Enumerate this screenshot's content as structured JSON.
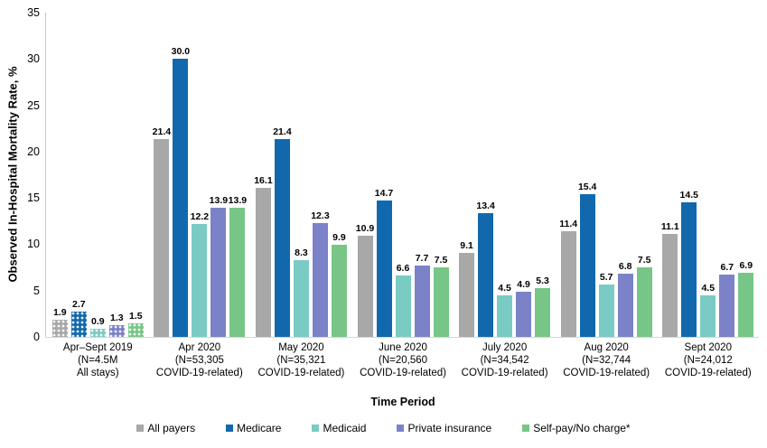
{
  "chart_data": {
    "type": "bar",
    "title": "",
    "ylabel": "Observed In-Hospital Mortality Rate, %",
    "xlabel": "Time Period",
    "ylim": [
      0,
      35
    ],
    "yticks": [
      0,
      5,
      10,
      15,
      20,
      25,
      30,
      35
    ],
    "grid": false,
    "legend_position": "bottom",
    "categories": [
      {
        "lines": [
          "Apr–Sept 2019",
          "(N=4.5M",
          "All stays)"
        ],
        "patterned": true
      },
      {
        "lines": [
          "Apr 2020",
          "(N=53,305",
          "COVID-19-related)"
        ],
        "patterned": false
      },
      {
        "lines": [
          "May 2020",
          "(N=35,321",
          "COVID-19-related)"
        ],
        "patterned": false
      },
      {
        "lines": [
          "June 2020",
          "(N=20,560",
          "COVID-19-related)"
        ],
        "patterned": false
      },
      {
        "lines": [
          "July 2020",
          "(N=34,542",
          "COVID-19-related)"
        ],
        "patterned": false
      },
      {
        "lines": [
          "Aug 2020",
          "(N=32,744",
          "COVID-19-related)"
        ],
        "patterned": false
      },
      {
        "lines": [
          "Sept 2020",
          "(N=24,012",
          "COVID-19-related)"
        ],
        "patterned": false
      }
    ],
    "series": [
      {
        "name": "All payers",
        "color": "#a8a8a8",
        "values": [
          1.9,
          21.4,
          16.1,
          10.9,
          9.1,
          11.4,
          11.1
        ]
      },
      {
        "name": "Medicare",
        "color": "#1268ac",
        "values": [
          2.7,
          30.0,
          21.4,
          14.7,
          13.4,
          15.4,
          14.5
        ]
      },
      {
        "name": "Medicaid",
        "color": "#7acbc3",
        "values": [
          0.9,
          12.2,
          8.3,
          6.6,
          4.5,
          5.7,
          4.5
        ]
      },
      {
        "name": "Private insurance",
        "color": "#7b82c8",
        "values": [
          1.3,
          13.9,
          12.3,
          7.7,
          4.9,
          6.8,
          6.7
        ]
      },
      {
        "name": "Self-pay/No charge*",
        "color": "#77c687",
        "values": [
          1.5,
          13.9,
          9.9,
          7.5,
          5.3,
          7.5,
          6.9
        ]
      }
    ],
    "axis_colors": {
      "y_axis_line": "#c9c9c9",
      "x_axis_line": "#d6d6d6"
    }
  }
}
